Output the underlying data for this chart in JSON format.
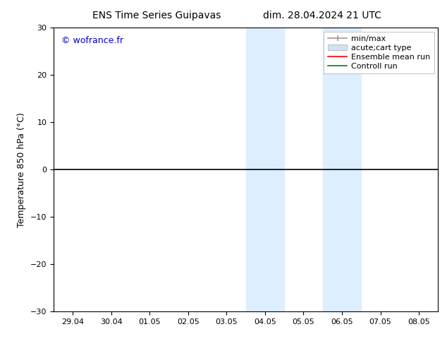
{
  "title_left": "ENS Time Series Guipavas",
  "title_right": "dim. 28.04.2024 21 UTC",
  "ylabel": "Temperature 850 hPa (°C)",
  "xlabel": "",
  "ylim": [
    -30,
    30
  ],
  "yticks": [
    -30,
    -20,
    -10,
    0,
    10,
    20,
    30
  ],
  "xtick_labels": [
    "29.04",
    "30.04",
    "01.05",
    "02.05",
    "03.05",
    "04.05",
    "05.05",
    "06.05",
    "07.05",
    "08.05"
  ],
  "xtick_positions": [
    0,
    1,
    2,
    3,
    4,
    5,
    6,
    7,
    8,
    9
  ],
  "xlim": [
    -0.5,
    9.5
  ],
  "shade_regions": [
    {
      "xmin": 4.5,
      "xmax": 5.5,
      "color": "#ddeeff"
    },
    {
      "xmin": 6.5,
      "xmax": 7.5,
      "color": "#ddeeff"
    }
  ],
  "hline_y": 0,
  "hline_color": "#000000",
  "hline_lw": 1.2,
  "watermark": "© wofrance.fr",
  "watermark_color": "#0000cc",
  "legend_entries": [
    {
      "label": "min/max",
      "color": "#999999",
      "lw": 1.2,
      "ls": "-",
      "type": "errbar"
    },
    {
      "label": "acute;cart type",
      "color": "#cce5f5",
      "lw": 8,
      "ls": "-",
      "type": "patch"
    },
    {
      "label": "Ensemble mean run",
      "color": "red",
      "lw": 1.2,
      "ls": "-",
      "type": "line"
    },
    {
      "label": "Controll run",
      "color": "green",
      "lw": 1.2,
      "ls": "-",
      "type": "line"
    }
  ],
  "bg_color": "white",
  "font_size_title": 10,
  "font_size_axis": 9,
  "font_size_tick": 8,
  "font_size_legend": 8,
  "font_size_watermark": 9
}
